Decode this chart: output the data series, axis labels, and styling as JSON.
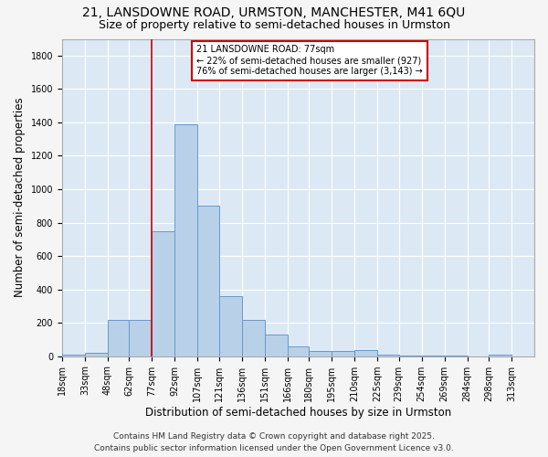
{
  "title_line1": "21, LANSDOWNE ROAD, URMSTON, MANCHESTER, M41 6QU",
  "title_line2": "Size of property relative to semi-detached houses in Urmston",
  "xlabel": "Distribution of semi-detached houses by size in Urmston",
  "ylabel": "Number of semi-detached properties",
  "footer_line1": "Contains HM Land Registry data © Crown copyright and database right 2025.",
  "footer_line2": "Contains public sector information licensed under the Open Government Licence v3.0.",
  "annotation_title": "21 LANSDOWNE ROAD: 77sqm",
  "annotation_line1": "← 22% of semi-detached houses are smaller (927)",
  "annotation_line2": "76% of semi-detached houses are larger (3,143) →",
  "property_size": 77,
  "bar_left_edges": [
    18,
    33,
    48,
    62,
    77,
    92,
    107,
    121,
    136,
    151,
    166,
    180,
    195,
    210,
    225,
    239,
    254,
    269,
    284,
    298
  ],
  "bar_heights": [
    10,
    20,
    220,
    220,
    750,
    1390,
    900,
    360,
    220,
    130,
    60,
    30,
    30,
    35,
    10,
    5,
    5,
    3,
    1,
    10
  ],
  "bar_widths": [
    15,
    15,
    14,
    15,
    15,
    15,
    14,
    15,
    15,
    15,
    14,
    15,
    15,
    15,
    14,
    15,
    15,
    15,
    14,
    15
  ],
  "tick_labels": [
    "18sqm",
    "33sqm",
    "48sqm",
    "62sqm",
    "77sqm",
    "92sqm",
    "107sqm",
    "121sqm",
    "136sqm",
    "151sqm",
    "166sqm",
    "180sqm",
    "195sqm",
    "210sqm",
    "225sqm",
    "239sqm",
    "254sqm",
    "269sqm",
    "284sqm",
    "298sqm",
    "313sqm"
  ],
  "tick_positions": [
    18,
    33,
    48,
    62,
    77,
    92,
    107,
    121,
    136,
    151,
    166,
    180,
    195,
    210,
    225,
    239,
    254,
    269,
    284,
    298,
    313
  ],
  "bar_color": "#b8d0e8",
  "bar_edge_color": "#6699cc",
  "vline_color": "#cc0000",
  "vline_x": 77,
  "annotation_box_edge_color": "#cc0000",
  "annotation_box_fill": "#ffffff",
  "ylim": [
    0,
    1900
  ],
  "xlim": [
    18,
    328
  ],
  "background_color": "#dce9f5",
  "grid_color": "#ffffff",
  "fig_bg_color": "#f5f5f5",
  "title_fontsize": 10,
  "subtitle_fontsize": 9,
  "axis_label_fontsize": 8.5,
  "tick_fontsize": 7,
  "annotation_fontsize": 7,
  "footer_fontsize": 6.5,
  "ytick_values": [
    0,
    200,
    400,
    600,
    800,
    1000,
    1200,
    1400,
    1600,
    1800
  ]
}
